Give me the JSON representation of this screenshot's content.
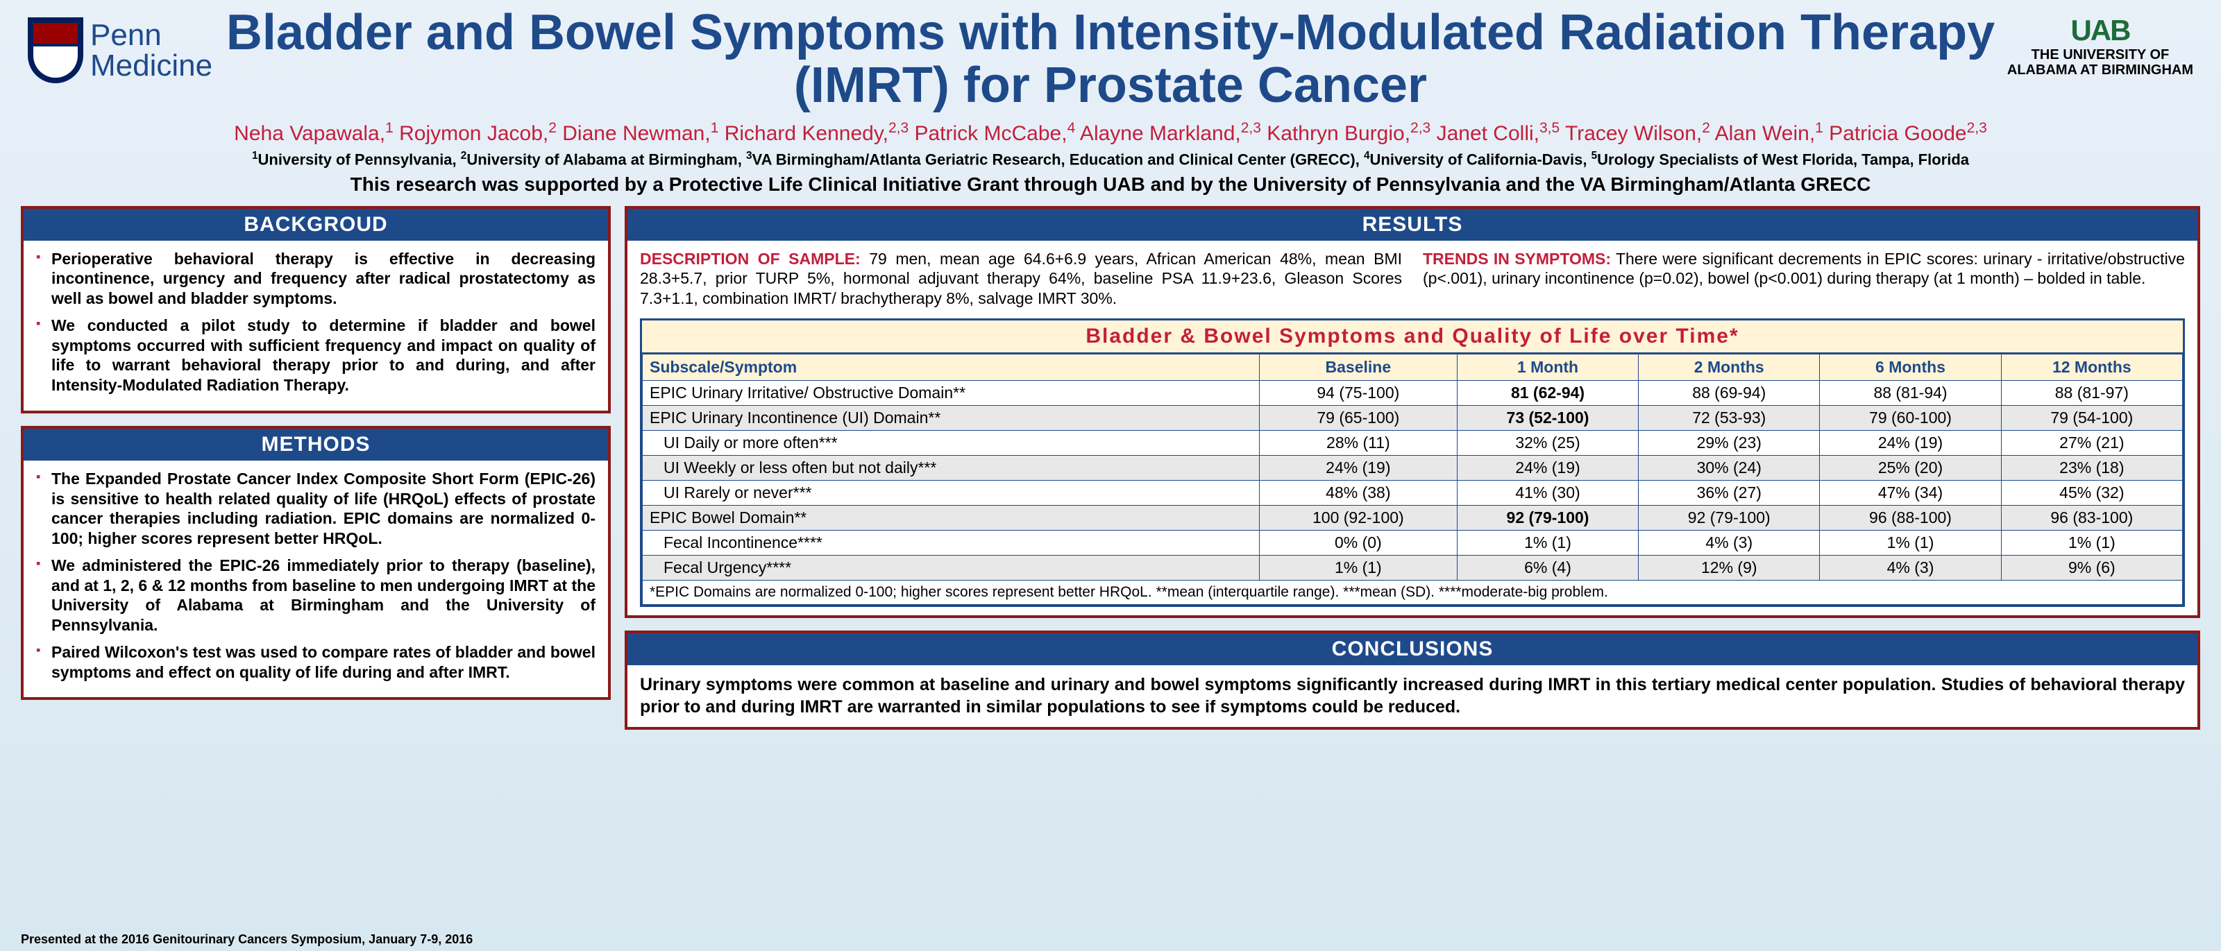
{
  "header": {
    "title": "Bladder and Bowel Symptoms with Intensity-Modulated Radiation Therapy (IMRT) for Prostate Cancer",
    "penn_label1": "Penn",
    "penn_label2": "Medicine",
    "uab_logo": "UAB",
    "uab_text1": "THE UNIVERSITY OF",
    "uab_text2": "ALABAMA AT BIRMINGHAM",
    "authors_html": "Neha Vapawala,<sup>1</sup> Rojymon Jacob,<sup>2</sup> Diane Newman,<sup>1</sup> Richard Kennedy,<sup>2,3</sup> Patrick McCabe,<sup>4</sup>  Alayne Markland,<sup>2,3</sup> Kathryn Burgio,<sup>2,3</sup> Janet Colli,<sup>3,5</sup> Tracey Wilson,<sup>2</sup> Alan Wein,<sup>1</sup> Patricia Goode<sup>2,3</sup>",
    "affiliations_html": "<sup>1</sup>University of Pennsylvania, <sup>2</sup>University of Alabama at Birmingham, <sup>3</sup>VA Birmingham/Atlanta Geriatric Research, Education and Clinical Center (GRECC), <sup>4</sup>University of California-Davis, <sup>5</sup>Urology Specialists of West Florida, Tampa, Florida",
    "funding": "This research was supported by a Protective Life Clinical Initiative Grant through UAB and by the University of Pennsylvania and the VA Birmingham/Atlanta GRECC"
  },
  "background": {
    "title": "BACKGROUD",
    "items": [
      "Perioperative behavioral therapy is effective in decreasing incontinence, urgency and frequency after radical prostatectomy as well as bowel and bladder symptoms.",
      "We conducted a pilot study to determine if bladder and bowel symptoms occurred with sufficient frequency and impact on quality of life to warrant behavioral therapy prior to and during, and after Intensity-Modulated Radiation Therapy."
    ]
  },
  "methods": {
    "title": "METHODS",
    "items": [
      "The Expanded Prostate Cancer Index Composite Short Form (EPIC-26) is sensitive to health related quality of life (HRQoL) effects of prostate cancer therapies including radiation. EPIC domains are normalized 0-100; higher scores represent better HRQoL.",
      "We administered the EPIC-26 immediately prior to therapy (baseline), and at 1, 2, 6 & 12 months from baseline to men undergoing IMRT at the University of Alabama at Birmingham and the University of Pennsylvania.",
      "Paired Wilcoxon's test was used to compare rates of bladder and bowel symptoms and effect on quality of life during and after IMRT."
    ]
  },
  "results": {
    "title": "RESULTS",
    "desc_label": "DESCRIPTION OF SAMPLE:",
    "desc_text": " 79 men, mean age 64.6+6.9 years, African American 48%, mean BMI 28.3+5.7, prior TURP 5%, hormonal adjuvant therapy 64%, baseline PSA 11.9+23.6, Gleason Scores 7.3+1.1, combination IMRT/ brachytherapy 8%, salvage IMRT 30%.",
    "trends_label": "TRENDS IN SYMPTOMS:",
    "trends_text": " There were significant decrements in EPIC scores: urinary - irritative/obstructive (p<.001), urinary incontinence (p=0.02), bowel (p<0.001) during therapy (at 1 month) – bolded in table.",
    "table_title": "Bladder & Bowel Symptoms and Quality of Life over Time*",
    "columns": [
      "Subscale/Symptom",
      "Baseline",
      "1 Month",
      "2 Months",
      "6 Months",
      "12 Months"
    ],
    "rows": [
      {
        "label": "EPIC Urinary Irritative/ Obstructive  Domain**",
        "cells": [
          "94 (75-100)",
          "81 (62-94)",
          "88 (69-94)",
          "88 (81-94)",
          "88 (81-97)"
        ],
        "gray": false,
        "indent": false,
        "bold_col": 1
      },
      {
        "label": "EPIC Urinary Incontinence  (UI) Domain**",
        "cells": [
          "79 (65-100)",
          "73 (52-100)",
          "72 (53-93)",
          "79 (60-100)",
          "79 (54-100)"
        ],
        "gray": true,
        "indent": false,
        "bold_col": 1
      },
      {
        "label": "UI Daily or more often***",
        "cells": [
          "28% (11)",
          "32% (25)",
          "29% (23)",
          "24% (19)",
          "27% (21)"
        ],
        "gray": false,
        "indent": true,
        "bold_col": -1
      },
      {
        "label": "UI Weekly or less often but  not daily***",
        "cells": [
          "24% (19)",
          "24% (19)",
          "30% (24)",
          "25% (20)",
          "23% (18)"
        ],
        "gray": true,
        "indent": true,
        "bold_col": -1
      },
      {
        "label": "UI Rarely or never***",
        "cells": [
          "48% (38)",
          "41% (30)",
          "36% (27)",
          "47% (34)",
          "45% (32)"
        ],
        "gray": false,
        "indent": true,
        "bold_col": -1
      },
      {
        "label": "EPIC Bowel Domain**",
        "cells": [
          "100 (92-100)",
          "92 (79-100)",
          "92 (79-100)",
          "96 (88-100)",
          "96 (83-100)"
        ],
        "gray": true,
        "indent": false,
        "bold_col": 1
      },
      {
        "label": "Fecal Incontinence****",
        "cells": [
          "0% (0)",
          "1% (1)",
          "4% (3)",
          "1% (1)",
          "1% (1)"
        ],
        "gray": false,
        "indent": true,
        "bold_col": -1
      },
      {
        "label": "Fecal Urgency****",
        "cells": [
          "1% (1)",
          "6% (4)",
          "12% (9)",
          "4% (3)",
          "9% (6)"
        ],
        "gray": true,
        "indent": true,
        "bold_col": -1
      }
    ],
    "table_footer": "*EPIC Domains are normalized 0-100; higher scores represent better HRQoL.     **mean (interquartile range). ***mean (SD). ****moderate-big problem."
  },
  "conclusions": {
    "title": "CONCLUSIONS",
    "text": "Urinary symptoms were common at baseline and urinary and bowel symptoms significantly increased during IMRT in this tertiary medical center population. Studies of behavioral therapy prior to and during IMRT are warranted in similar populations to see if symptoms could be reduced."
  },
  "footer": "Presented at the 2016 Genitourinary Cancers Symposium,  January 7-9, 2016"
}
